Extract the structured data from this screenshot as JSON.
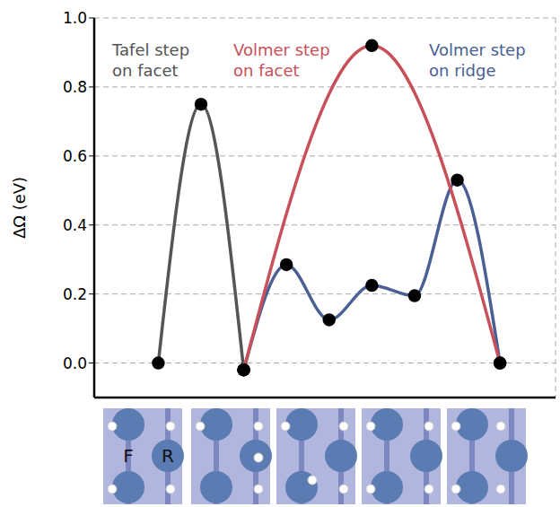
{
  "chart_data": {
    "type": "line",
    "xlim": [
      -1.5,
      9.3
    ],
    "xticks": [
      0,
      2,
      4,
      6,
      8
    ],
    "ylim": [
      -0.1,
      1.0
    ],
    "yticks": [
      {
        "value": 0,
        "label": "0.0"
      },
      {
        "value": 0.2,
        "label": "0.2"
      },
      {
        "value": 0.4,
        "label": "0.4"
      },
      {
        "value": 0.6,
        "label": "0.6"
      },
      {
        "value": 0.8,
        "label": "0.8"
      },
      {
        "value": 1,
        "label": "1.0"
      }
    ],
    "ylabel": "ΔΩ (eV)",
    "grid": true,
    "tick_labels": "y",
    "series": [
      {
        "name": "Tafel step on facet",
        "color": "#555555",
        "marker": "o",
        "line_style": "solid",
        "x": [
          0,
          1,
          2
        ],
        "values": [
          0,
          0.75,
          -0.02
        ]
      },
      {
        "name": "Volmer step on ridge",
        "color": "#4a5f94",
        "marker": "o",
        "line_style": "solid",
        "x": [
          2,
          3,
          4,
          5,
          6,
          7,
          8
        ],
        "values": [
          -0.02,
          0.285,
          0.125,
          0.225,
          0.195,
          0.53,
          0
        ]
      },
      {
        "name": "Volmer step on facet",
        "color": "#c8505a",
        "marker": "o",
        "line_style": "solid",
        "x": [
          2,
          5,
          8
        ],
        "values": [
          -0.02,
          0.92,
          0
        ]
      }
    ],
    "structure_labels": [
      "F",
      "R"
    ]
  }
}
